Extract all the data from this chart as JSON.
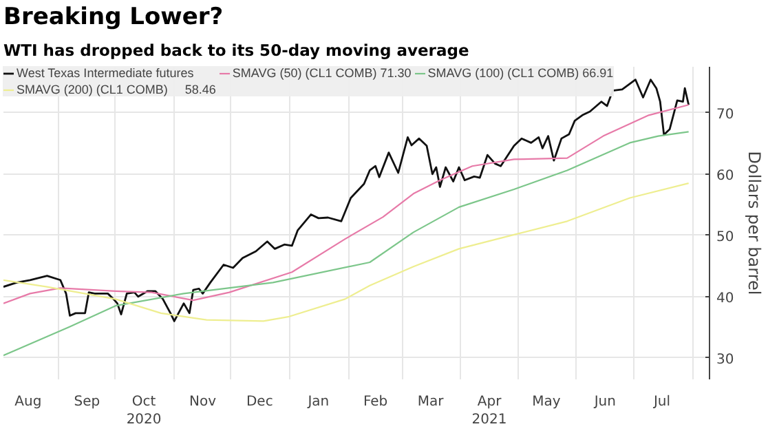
{
  "chart_data": {
    "type": "line",
    "title": "Breaking Lower?",
    "subtitle": "WTI has dropped back to its 50-day moving average",
    "ylabel": "Dollars per barrel",
    "xlim": [
      "2020-08-03",
      "2021-08-10"
    ],
    "ylim": [
      26.5,
      77.5
    ],
    "yticks": [
      30,
      40,
      50,
      60,
      70
    ],
    "xticks": [
      {
        "value": "2020-08-16",
        "label": "Aug"
      },
      {
        "value": "2020-09-01",
        "label": null
      },
      {
        "value": "2020-09-16",
        "label": "Sep"
      },
      {
        "value": "2020-10-01",
        "label": null
      },
      {
        "value": "2020-10-16",
        "label": "Oct\n2020"
      },
      {
        "value": "2020-11-01",
        "label": null
      },
      {
        "value": "2020-11-16",
        "label": "Nov"
      },
      {
        "value": "2020-12-01",
        "label": null
      },
      {
        "value": "2020-12-16",
        "label": "Dec"
      },
      {
        "value": "2021-01-01",
        "label": null
      },
      {
        "value": "2021-01-16",
        "label": "Jan"
      },
      {
        "value": "2021-02-01",
        "label": null
      },
      {
        "value": "2021-02-15",
        "label": "Feb"
      },
      {
        "value": "2021-03-01",
        "label": null
      },
      {
        "value": "2021-03-16",
        "label": "Mar"
      },
      {
        "value": "2021-04-01",
        "label": null
      },
      {
        "value": "2021-04-16",
        "label": "Apr\n2021"
      },
      {
        "value": "2021-05-01",
        "label": null
      },
      {
        "value": "2021-05-16",
        "label": "May"
      },
      {
        "value": "2021-06-01",
        "label": null
      },
      {
        "value": "2021-06-16",
        "label": "Jun"
      },
      {
        "value": "2021-07-01",
        "label": null
      },
      {
        "value": "2021-07-16",
        "label": "Jul"
      },
      {
        "value": "2021-08-01",
        "label": null
      }
    ],
    "grid": true,
    "legend": "top left",
    "line_style": "solid",
    "marker": "none",
    "series": [
      {
        "name": "West Texas Intermediate futures",
        "color": "#111111",
        "x": [
          "2020-08-03",
          "2020-08-10",
          "2020-08-17",
          "2020-08-26",
          "2020-09-02",
          "2020-09-05",
          "2020-09-07",
          "2020-09-10",
          "2020-09-15",
          "2020-09-17",
          "2020-09-20",
          "2020-09-27",
          "2020-09-30",
          "2020-10-02",
          "2020-10-04",
          "2020-10-07",
          "2020-10-11",
          "2020-10-13",
          "2020-10-18",
          "2020-10-22",
          "2020-10-26",
          "2020-10-30",
          "2020-11-01",
          "2020-11-06",
          "2020-11-09",
          "2020-11-11",
          "2020-11-14",
          "2020-11-16",
          "2020-11-20",
          "2020-11-27",
          "2020-12-02",
          "2020-12-07",
          "2020-12-14",
          "2020-12-20",
          "2020-12-24",
          "2020-12-29",
          "2021-01-02",
          "2021-01-05",
          "2021-01-12",
          "2021-01-16",
          "2021-01-21",
          "2021-01-28",
          "2021-02-02",
          "2021-02-09",
          "2021-02-12",
          "2021-02-15",
          "2021-02-17",
          "2021-02-22",
          "2021-02-27",
          "2021-03-04",
          "2021-03-06",
          "2021-03-10",
          "2021-03-14",
          "2021-03-17",
          "2021-03-19",
          "2021-03-21",
          "2021-03-24",
          "2021-03-28",
          "2021-03-31",
          "2021-04-03",
          "2021-04-08",
          "2021-04-11",
          "2021-04-15",
          "2021-04-19",
          "2021-04-22",
          "2021-04-29",
          "2021-05-03",
          "2021-05-08",
          "2021-05-12",
          "2021-05-14",
          "2021-05-17",
          "2021-05-20",
          "2021-05-24",
          "2021-05-28",
          "2021-05-31",
          "2021-06-04",
          "2021-06-08",
          "2021-06-14",
          "2021-06-17",
          "2021-06-20",
          "2021-06-25",
          "2021-07-02",
          "2021-07-06",
          "2021-07-10",
          "2021-07-13",
          "2021-07-15",
          "2021-07-17",
          "2021-07-20",
          "2021-07-24",
          "2021-07-27",
          "2021-07-28",
          "2021-07-30"
        ],
        "values": [
          41.6,
          42.3,
          42.7,
          43.4,
          42.7,
          40.5,
          36.9,
          37.3,
          37.3,
          40.7,
          40.5,
          40.5,
          39.6,
          38.9,
          37.1,
          40.5,
          40.7,
          40.0,
          40.9,
          40.9,
          39.6,
          37.3,
          36.0,
          38.9,
          37.3,
          41.1,
          41.3,
          40.5,
          42.3,
          45.2,
          44.7,
          46.3,
          47.4,
          49.0,
          47.8,
          48.5,
          48.3,
          50.8,
          53.4,
          52.8,
          52.9,
          52.3,
          56.1,
          58.4,
          60.6,
          61.3,
          59.5,
          63.5,
          60.2,
          66.0,
          64.7,
          65.8,
          64.6,
          60.0,
          61.1,
          57.9,
          61.1,
          58.8,
          61.1,
          59.0,
          59.6,
          59.4,
          63.1,
          61.7,
          61.3,
          64.6,
          65.8,
          65.1,
          66.0,
          64.2,
          66.2,
          62.2,
          65.8,
          66.5,
          68.7,
          69.6,
          70.2,
          71.8,
          71.1,
          73.6,
          73.8,
          75.4,
          72.5,
          75.4,
          74.0,
          71.8,
          66.4,
          67.3,
          72.0,
          71.8,
          74.0,
          71.3
        ]
      },
      {
        "name": "SMAVG (50) (CL1 COMB) 71.30",
        "color": "#e77aa8",
        "x": [
          "2020-08-03",
          "2020-08-17",
          "2020-09-02",
          "2020-10-01",
          "2020-10-20",
          "2020-11-11",
          "2020-11-30",
          "2021-01-02",
          "2021-01-30",
          "2021-02-19",
          "2021-03-07",
          "2021-03-21",
          "2021-04-07",
          "2021-04-29",
          "2021-05-27",
          "2021-06-15",
          "2021-07-09",
          "2021-07-30"
        ],
        "values": [
          38.9,
          40.5,
          41.4,
          40.9,
          40.7,
          39.4,
          40.7,
          44.0,
          49.4,
          53.0,
          56.8,
          59.0,
          61.3,
          62.4,
          62.6,
          66.2,
          69.6,
          71.3
        ]
      },
      {
        "name": "SMAVG (100) (CL1 COMB) 66.91",
        "color": "#7cc68a",
        "x": [
          "2020-08-03",
          "2020-09-07",
          "2020-10-01",
          "2020-11-06",
          "2020-12-23",
          "2021-02-12",
          "2021-03-07",
          "2021-03-31",
          "2021-04-29",
          "2021-05-27",
          "2021-06-29",
          "2021-07-14",
          "2021-07-30"
        ],
        "values": [
          30.4,
          35.1,
          38.5,
          40.5,
          42.3,
          45.6,
          50.5,
          54.6,
          57.5,
          60.6,
          65.1,
          66.2,
          66.9
        ]
      },
      {
        "name": "SMAVG (200) (CL1 COMB)     58.46",
        "color": "#eeee90",
        "x": [
          "2020-08-03",
          "2020-08-26",
          "2020-10-01",
          "2020-10-25",
          "2020-11-18",
          "2020-12-18",
          "2020-12-31",
          "2021-01-30",
          "2021-02-12",
          "2021-03-07",
          "2021-03-31",
          "2021-04-29",
          "2021-05-27",
          "2021-06-29",
          "2021-07-30"
        ],
        "values": [
          42.7,
          41.6,
          39.6,
          37.3,
          36.2,
          36.0,
          36.7,
          39.6,
          41.8,
          44.9,
          47.8,
          50.1,
          52.3,
          56.1,
          58.5
        ]
      }
    ]
  }
}
